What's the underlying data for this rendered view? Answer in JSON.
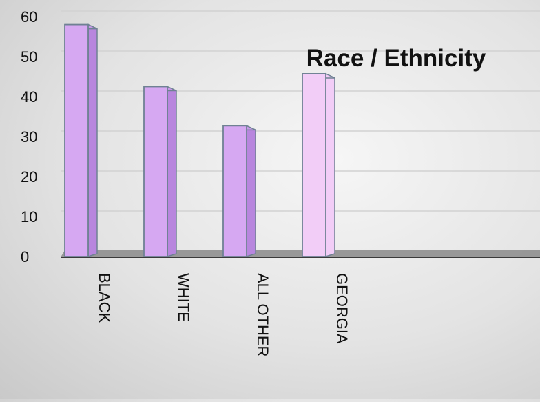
{
  "chart_data": {
    "type": "bar",
    "title": "Race / Ethnicity",
    "xlabel": "",
    "ylabel": "",
    "categories": [
      "BLACK",
      "WHITE",
      "ALL OTHER",
      "GEORGIA"
    ],
    "values": [
      58,
      42.5,
      32.7,
      45.7
    ],
    "ylim": [
      0,
      60
    ],
    "yticks": [
      "0",
      "10",
      "20",
      "30",
      "40",
      "50",
      "60"
    ],
    "grid": true,
    "colors": {
      "bar_front": "#d6a8f2",
      "bar_side": "#b886de",
      "bar_top": "#c699e8",
      "bar_highlight": "#f2cdf7",
      "bar_outline": "#6f8193",
      "grid": "#d2d2d2",
      "axis": "#3a3a3a",
      "floor": "#8a8a8a",
      "text": "#111111"
    }
  }
}
